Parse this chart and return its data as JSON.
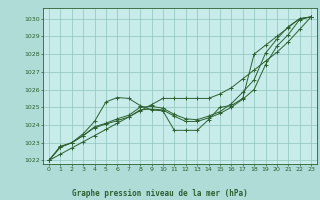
{
  "xlabel": "Graphe pression niveau de la mer (hPa)",
  "bg_color": "#b0dcd8",
  "plot_bg_color": "#c8ecea",
  "grid_color": "#90c4be",
  "line_color": "#2d6030",
  "xlim": [
    -0.5,
    23.5
  ],
  "ylim": [
    1021.8,
    1030.6
  ],
  "yticks": [
    1022,
    1023,
    1024,
    1025,
    1026,
    1027,
    1028,
    1029,
    1030
  ],
  "xticks": [
    0,
    1,
    2,
    3,
    4,
    5,
    6,
    7,
    8,
    9,
    10,
    11,
    12,
    13,
    14,
    15,
    16,
    17,
    18,
    19,
    20,
    21,
    22,
    23
  ],
  "line1": [
    1022.0,
    1022.8,
    1023.0,
    1023.5,
    1024.2,
    1025.3,
    1025.55,
    1025.5,
    1025.1,
    1024.85,
    1024.8,
    1023.7,
    1023.7,
    1023.7,
    1024.3,
    1025.0,
    1025.1,
    1025.5,
    1028.0,
    1028.5,
    1029.0,
    1029.5,
    1030.0,
    1030.1
  ],
  "line2": [
    1022.0,
    1022.75,
    1023.0,
    1023.4,
    1023.85,
    1024.05,
    1024.25,
    1024.45,
    1024.85,
    1024.9,
    1024.85,
    1024.5,
    1024.2,
    1024.2,
    1024.4,
    1024.65,
    1025.0,
    1025.45,
    1026.0,
    1027.4,
    1028.45,
    1029.1,
    1029.95,
    1030.1
  ],
  "line3": [
    1022.0,
    1022.75,
    1023.0,
    1023.4,
    1023.9,
    1024.1,
    1024.35,
    1024.55,
    1025.0,
    1025.05,
    1024.95,
    1024.6,
    1024.35,
    1024.3,
    1024.5,
    1024.75,
    1025.2,
    1025.85,
    1026.55,
    1028.05,
    1028.85,
    1029.55,
    1030.0,
    1030.1
  ],
  "line4": [
    1022.0,
    1022.35,
    1022.7,
    1023.05,
    1023.4,
    1023.75,
    1024.1,
    1024.45,
    1024.8,
    1025.15,
    1025.5,
    1025.5,
    1025.5,
    1025.5,
    1025.5,
    1025.75,
    1026.1,
    1026.6,
    1027.1,
    1027.6,
    1028.1,
    1028.7,
    1029.4,
    1030.1
  ]
}
